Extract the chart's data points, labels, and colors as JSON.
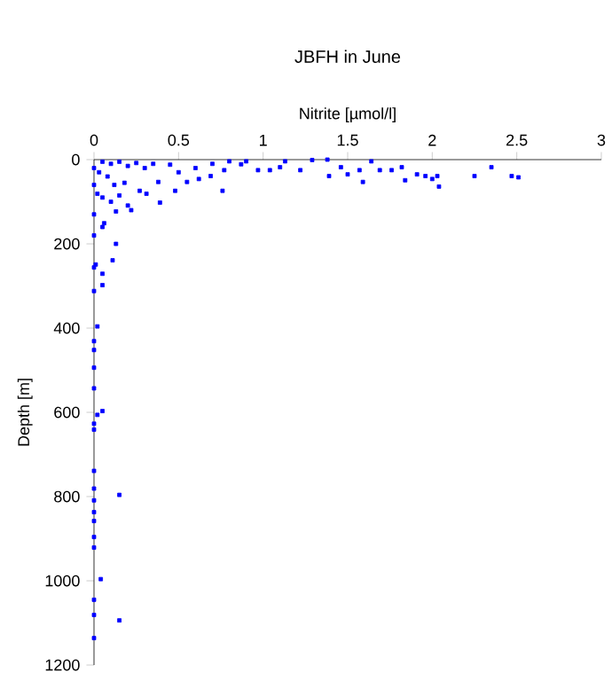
{
  "chart_data": {
    "type": "scatter",
    "title": "JBFH in June",
    "xlabel": "Nitrite [µmol/l]",
    "ylabel": "Depth [m]",
    "xlim": [
      0,
      3
    ],
    "xticks": [
      0,
      0.5,
      1,
      1.5,
      2,
      2.5,
      3
    ],
    "ylim": [
      1200,
      0
    ],
    "yticks": [
      0,
      200,
      400,
      600,
      800,
      1000,
      1200
    ],
    "marker": "square",
    "grid": false,
    "series": [
      {
        "color": "#0000ff",
        "x": [
          2.51,
          2.47,
          2.35,
          2.25,
          2.04,
          2.03,
          2.0,
          1.96,
          1.91,
          1.84,
          1.82,
          1.76,
          1.69,
          1.64,
          1.59,
          1.57,
          1.5,
          1.46,
          1.39,
          1.38,
          1.29,
          1.22,
          1.13,
          1.1,
          1.04,
          0.97,
          0.9,
          0.87,
          0.8,
          0.77,
          0.76,
          0.69,
          0.62,
          0.55,
          0.48,
          0.39,
          0.38,
          0.31,
          0.27,
          0.2,
          0.13,
          0.13,
          0.11,
          0.06,
          0.02,
          0.01,
          0.05,
          0.1,
          0.15,
          0.2,
          0.25,
          0.3,
          0.35,
          0.45,
          0.5,
          0.6,
          0.7,
          0.03,
          0.08,
          0.12,
          0.18,
          0.05,
          0.1,
          0.15,
          0.22,
          0.05,
          0.05,
          0.02,
          0.05,
          0.02,
          0.05,
          0.15,
          0.04,
          0.15,
          0,
          0,
          0,
          0,
          0,
          0,
          0,
          0,
          0,
          0,
          0,
          0,
          0,
          0,
          0,
          0,
          0,
          0,
          0,
          0,
          0,
          0
        ],
        "values": [
          42,
          39,
          18,
          39,
          64,
          39,
          46,
          39,
          35,
          49,
          18,
          25,
          25,
          4,
          53,
          25,
          35,
          18,
          39,
          0,
          1,
          25,
          4,
          18,
          25,
          25,
          4,
          11,
          4,
          25,
          74,
          39,
          46,
          53,
          74,
          102,
          53,
          81,
          74,
          109,
          123,
          200,
          239,
          151,
          81,
          249,
          5,
          10,
          5,
          15,
          8,
          20,
          10,
          12,
          30,
          20,
          10,
          30,
          40,
          60,
          55,
          90,
          100,
          85,
          120,
          160,
          271,
          396,
          298,
          606,
          597,
          796,
          996,
          1094,
          20,
          60,
          130,
          180,
          256,
          312,
          431,
          452,
          494,
          543,
          627,
          641,
          739,
          781,
          809,
          837,
          858,
          896,
          921,
          1045,
          1081,
          1136
        ]
      }
    ]
  }
}
